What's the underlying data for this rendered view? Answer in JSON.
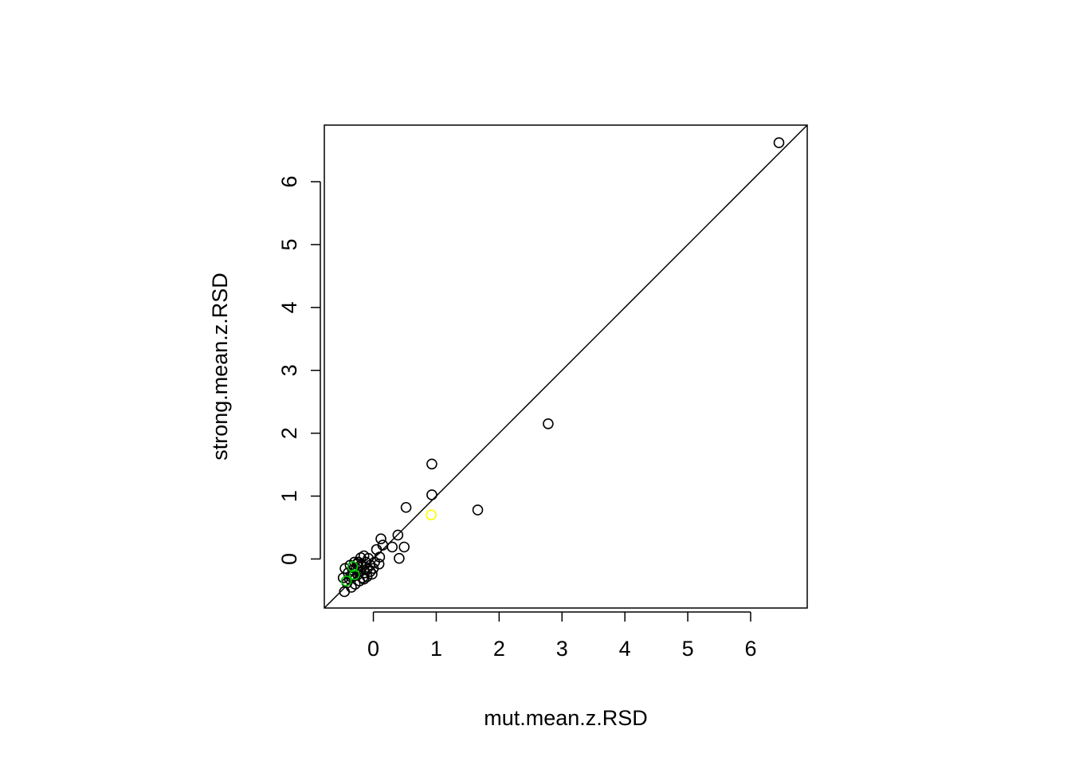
{
  "chart_data": {
    "type": "scatter",
    "title": "",
    "xlabel": "mut.mean.z.RSD",
    "ylabel": "strong.mean.z.RSD",
    "xlim": [
      -0.78,
      6.9
    ],
    "ylim": [
      -0.78,
      6.9
    ],
    "x_ticks": [
      "0",
      "1",
      "2",
      "3",
      "4",
      "5",
      "6"
    ],
    "y_ticks": [
      "0",
      "1",
      "2",
      "3",
      "4",
      "5",
      "6"
    ],
    "grid": false,
    "reference_line": {
      "slope": 1,
      "intercept": 0
    },
    "colors": {
      "default": "#000000",
      "highlight_green": "#00cc00",
      "highlight_yellow": "#ffff00"
    },
    "series": [
      {
        "color": "default",
        "points": [
          [
            6.45,
            6.62
          ],
          [
            2.78,
            2.15
          ],
          [
            1.66,
            0.78
          ],
          [
            0.93,
            1.51
          ],
          [
            0.93,
            1.02
          ],
          [
            0.52,
            0.82
          ],
          [
            0.49,
            0.19
          ],
          [
            0.41,
            0.01
          ],
          [
            0.39,
            0.38
          ],
          [
            0.3,
            0.19
          ],
          [
            0.15,
            0.22
          ],
          [
            0.12,
            0.32
          ],
          [
            0.1,
            0.03
          ],
          [
            0.09,
            -0.08
          ],
          [
            0.05,
            0.15
          ],
          [
            0.02,
            -0.05
          ],
          [
            0.0,
            -0.15
          ],
          [
            -0.02,
            -0.24
          ],
          [
            -0.05,
            -0.1
          ],
          [
            -0.08,
            0.01
          ],
          [
            -0.1,
            -0.16
          ],
          [
            -0.12,
            -0.05
          ],
          [
            -0.14,
            -0.22
          ],
          [
            -0.15,
            0.05
          ],
          [
            -0.17,
            -0.3
          ],
          [
            -0.18,
            -0.12
          ],
          [
            -0.2,
            0.02
          ],
          [
            -0.21,
            -0.2
          ],
          [
            -0.22,
            -0.35
          ],
          [
            -0.24,
            -0.05
          ],
          [
            -0.25,
            -0.25
          ],
          [
            -0.27,
            -0.15
          ],
          [
            -0.29,
            -0.4
          ],
          [
            -0.3,
            -0.05
          ],
          [
            -0.32,
            -0.28
          ],
          [
            -0.33,
            -0.18
          ],
          [
            -0.35,
            -0.45
          ],
          [
            -0.37,
            -0.1
          ],
          [
            -0.38,
            -0.32
          ],
          [
            -0.4,
            -0.22
          ],
          [
            -0.42,
            -0.38
          ],
          [
            -0.45,
            -0.15
          ],
          [
            -0.46,
            -0.52
          ],
          [
            -0.48,
            -0.3
          ],
          [
            -0.2,
            -0.1
          ],
          [
            -0.15,
            -0.32
          ],
          [
            -0.1,
            -0.28
          ],
          [
            -0.05,
            -0.2
          ],
          [
            -0.26,
            -0.08
          ],
          [
            -0.36,
            -0.28
          ]
        ]
      },
      {
        "color": "highlight_green",
        "points": [
          [
            -0.43,
            -0.35
          ],
          [
            -0.3,
            -0.25
          ],
          [
            -0.33,
            -0.12
          ]
        ]
      },
      {
        "color": "highlight_yellow",
        "points": [
          [
            0.92,
            0.7
          ]
        ]
      }
    ]
  }
}
